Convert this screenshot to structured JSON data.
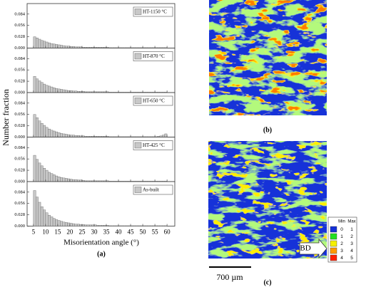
{
  "chart_data": [
    {
      "type": "histogram",
      "legend": "HT-1150 °C",
      "color": "#c8c8c8",
      "bins": [
        5,
        6,
        7,
        8,
        9,
        10,
        11,
        12,
        13,
        14,
        15,
        16,
        17,
        18,
        19,
        20,
        21,
        22,
        23,
        24,
        25,
        26,
        27,
        28,
        29,
        30,
        31,
        32,
        33,
        34,
        35,
        36,
        37,
        38,
        39,
        40,
        41,
        42,
        43,
        44,
        45,
        46,
        47,
        48,
        49,
        50,
        51,
        52,
        53,
        54,
        55,
        56,
        57,
        58,
        59,
        60
      ],
      "values": [
        0.028,
        0.025,
        0.022,
        0.019,
        0.017,
        0.015,
        0.013,
        0.011,
        0.01,
        0.009,
        0.008,
        0.007,
        0.006,
        0.005,
        0.005,
        0.004,
        0.004,
        0.003,
        0.003,
        0.003,
        0.002,
        0.002,
        0.002,
        0.002,
        0.002,
        0.002,
        0.002,
        0.002,
        0.002,
        0.002,
        0.002,
        0.001,
        0.001,
        0.001,
        0.001,
        0.001,
        0.001,
        0.001,
        0.001,
        0.001,
        0.001,
        0.001,
        0.001,
        0.001,
        0.001,
        0.001,
        0.001,
        0.001,
        0.001,
        0.001,
        0.001,
        0.001,
        0.001,
        0.001,
        0.001
      ],
      "xlim": [
        2.4,
        63.2
      ],
      "ylim": [
        0,
        0.11
      ],
      "yticks": [
        {
          "value": 0,
          "label": "0.000"
        },
        0.028,
        0.056,
        0.084
      ]
    },
    {
      "type": "histogram",
      "legend": "HT-870 °C",
      "color": "#c8c8c8",
      "bins": [
        5,
        6,
        7,
        8,
        9,
        10,
        11,
        12,
        13,
        14,
        15,
        16,
        17,
        18,
        19,
        20,
        21,
        22,
        23,
        24,
        25,
        26,
        27,
        28,
        29,
        30,
        31,
        32,
        33,
        34,
        35,
        36,
        37,
        38,
        39,
        40,
        41,
        42,
        43,
        44,
        45,
        46,
        47,
        48,
        49,
        50,
        51,
        52,
        53,
        54,
        55,
        56,
        57,
        58,
        59,
        60
      ],
      "values": [
        0.04,
        0.034,
        0.029,
        0.025,
        0.021,
        0.018,
        0.016,
        0.014,
        0.012,
        0.01,
        0.009,
        0.008,
        0.007,
        0.006,
        0.005,
        0.005,
        0.004,
        0.004,
        0.003,
        0.003,
        0.003,
        0.002,
        0.002,
        0.002,
        0.002,
        0.002,
        0.002,
        0.002,
        0.002,
        0.002,
        0.002,
        0.001,
        0.001,
        0.001,
        0.001,
        0.001,
        0.001,
        0.001,
        0.001,
        0.001,
        0.001,
        0.001,
        0.001,
        0.001,
        0.001,
        0.001,
        0.001,
        0.001,
        0.001,
        0.001,
        0.001,
        0.001,
        0.001,
        0.001,
        0.001
      ],
      "xlim": [
        2.4,
        63.2
      ],
      "ylim": [
        0,
        0.11
      ],
      "yticks": [
        {
          "value": 0,
          "label": "0.000"
        },
        0.028,
        0.056,
        0.084
      ]
    },
    {
      "type": "histogram",
      "legend": "HT-650 °C",
      "color": "#c8c8c8",
      "bins": [
        5,
        6,
        7,
        8,
        9,
        10,
        11,
        12,
        13,
        14,
        15,
        16,
        17,
        18,
        19,
        20,
        21,
        22,
        23,
        24,
        25,
        26,
        27,
        28,
        29,
        30,
        31,
        32,
        33,
        34,
        35,
        36,
        37,
        38,
        39,
        40,
        41,
        42,
        43,
        44,
        45,
        46,
        47,
        48,
        49,
        50,
        51,
        52,
        53,
        54,
        55,
        56,
        57,
        58,
        59,
        60
      ],
      "values": [
        0.056,
        0.048,
        0.04,
        0.034,
        0.029,
        0.024,
        0.02,
        0.017,
        0.015,
        0.013,
        0.011,
        0.009,
        0.008,
        0.007,
        0.006,
        0.005,
        0.005,
        0.004,
        0.004,
        0.003,
        0.003,
        0.002,
        0.002,
        0.002,
        0.002,
        0.002,
        0.002,
        0.002,
        0.002,
        0.002,
        0.002,
        0.001,
        0.001,
        0.001,
        0.001,
        0.001,
        0.001,
        0.001,
        0.001,
        0.001,
        0.001,
        0.001,
        0.001,
        0.001,
        0.001,
        0.001,
        0.001,
        0.001,
        0.001,
        0.001,
        0.001,
        0.002,
        0.003,
        0.005,
        0.008
      ],
      "xlim": [
        2.4,
        63.2
      ],
      "ylim": [
        0,
        0.11
      ],
      "yticks": [
        {
          "value": 0,
          "label": "0.000"
        },
        0.028,
        0.056,
        0.084
      ]
    },
    {
      "type": "histogram",
      "legend": "HT-425 °C",
      "color": "#c8c8c8",
      "bins": [
        5,
        6,
        7,
        8,
        9,
        10,
        11,
        12,
        13,
        14,
        15,
        16,
        17,
        18,
        19,
        20,
        21,
        22,
        23,
        24,
        25,
        26,
        27,
        28,
        29,
        30,
        31,
        32,
        33,
        34,
        35,
        36,
        37,
        38,
        39,
        40,
        41,
        42,
        43,
        44,
        45,
        46,
        47,
        48,
        49,
        50,
        51,
        52,
        53,
        54,
        55,
        56,
        57,
        58,
        59,
        60
      ],
      "values": [
        0.065,
        0.055,
        0.046,
        0.039,
        0.033,
        0.028,
        0.023,
        0.02,
        0.017,
        0.014,
        0.012,
        0.01,
        0.009,
        0.008,
        0.007,
        0.006,
        0.005,
        0.005,
        0.004,
        0.004,
        0.003,
        0.002,
        0.002,
        0.002,
        0.002,
        0.002,
        0.002,
        0.002,
        0.002,
        0.002,
        0.002,
        0.001,
        0.001,
        0.001,
        0.001,
        0.001,
        0.001,
        0.001,
        0.001,
        0.001,
        0.001,
        0.001,
        0.001,
        0.001,
        0.001,
        0.001,
        0.001,
        0.001,
        0.001,
        0.001,
        0.001,
        0.001,
        0.001,
        0.001,
        0.001
      ],
      "xlim": [
        2.4,
        63.2
      ],
      "ylim": [
        0,
        0.11
      ],
      "yticks": [
        {
          "value": 0,
          "label": "0.000"
        },
        0.028,
        0.056,
        0.084
      ]
    },
    {
      "type": "histogram",
      "legend": "As-built",
      "color": "#c8c8c8",
      "bins": [
        5,
        6,
        7,
        8,
        9,
        10,
        11,
        12,
        13,
        14,
        15,
        16,
        17,
        18,
        19,
        20,
        21,
        22,
        23,
        24,
        25,
        26,
        27,
        28,
        29,
        30,
        31,
        32,
        33,
        34,
        35,
        36,
        37,
        38,
        39,
        40,
        41,
        42,
        43,
        44,
        45,
        46,
        47,
        48,
        49,
        50,
        51,
        52,
        53,
        54,
        55,
        56,
        57,
        58,
        59,
        60
      ],
      "values": [
        0.088,
        0.072,
        0.059,
        0.048,
        0.04,
        0.033,
        0.027,
        0.023,
        0.019,
        0.016,
        0.014,
        0.012,
        0.01,
        0.009,
        0.008,
        0.007,
        0.006,
        0.005,
        0.005,
        0.004,
        0.004,
        0.003,
        0.003,
        0.003,
        0.003,
        0.003,
        0.002,
        0.002,
        0.002,
        0.002,
        0.002,
        0.001,
        0.001,
        0.001,
        0.001,
        0.001,
        0.001,
        0.001,
        0.001,
        0.001,
        0.001,
        0.001,
        0.001,
        0.001,
        0.001,
        0.001,
        0.001,
        0.001,
        0.001,
        0.001,
        0.001,
        0.001,
        0.001,
        0.001,
        0.001
      ],
      "xlim": [
        2.4,
        63.2
      ],
      "ylim": [
        0,
        0.11
      ],
      "yticks": [
        {
          "value": 0,
          "label": "0.000"
        },
        0.028,
        0.056,
        0.084
      ],
      "xticks": [
        5,
        10,
        15,
        20,
        25,
        30,
        35,
        40,
        45,
        50,
        55,
        60
      ]
    }
  ],
  "figure": {
    "ylabel": "Number fraction",
    "xlabel": "Misorientation angle (°)",
    "panel_a": "(a)",
    "panel_b": "(b)",
    "panel_c": "(c)",
    "scale_bar": "700 µm",
    "build_direction": "BD"
  },
  "kam_legend": {
    "headers": [
      "Min",
      "Max"
    ],
    "rows": [
      [
        0,
        1
      ],
      [
        1,
        2
      ],
      [
        2,
        3
      ],
      [
        3,
        4
      ],
      [
        4,
        5
      ]
    ]
  }
}
